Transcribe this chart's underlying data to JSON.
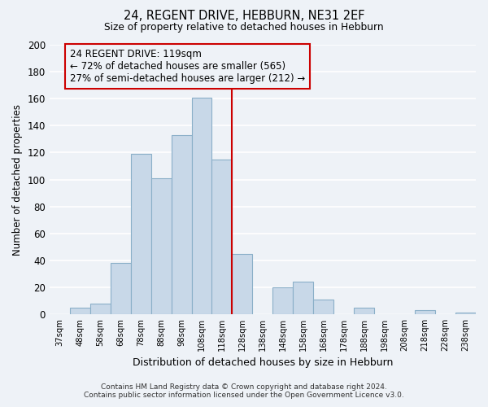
{
  "title": "24, REGENT DRIVE, HEBBURN, NE31 2EF",
  "subtitle": "Size of property relative to detached houses in Hebburn",
  "xlabel": "Distribution of detached houses by size in Hebburn",
  "ylabel": "Number of detached properties",
  "bin_labels": [
    "37sqm",
    "48sqm",
    "58sqm",
    "68sqm",
    "78sqm",
    "88sqm",
    "98sqm",
    "108sqm",
    "118sqm",
    "128sqm",
    "138sqm",
    "148sqm",
    "158sqm",
    "168sqm",
    "178sqm",
    "188sqm",
    "198sqm",
    "208sqm",
    "218sqm",
    "228sqm",
    "238sqm"
  ],
  "bar_heights": [
    0,
    5,
    8,
    38,
    119,
    101,
    133,
    161,
    115,
    45,
    0,
    20,
    24,
    11,
    0,
    5,
    0,
    0,
    3,
    0,
    1
  ],
  "bar_color": "#c8d8e8",
  "bar_edge_color": "#8aafc8",
  "vline_color": "#cc0000",
  "annotation_title": "24 REGENT DRIVE: 119sqm",
  "annotation_line1": "← 72% of detached houses are smaller (565)",
  "annotation_line2": "27% of semi-detached houses are larger (212) →",
  "annotation_box_edge": "#cc0000",
  "footnote1": "Contains HM Land Registry data © Crown copyright and database right 2024.",
  "footnote2": "Contains public sector information licensed under the Open Government Licence v3.0.",
  "ylim": [
    0,
    200
  ],
  "yticks": [
    0,
    20,
    40,
    60,
    80,
    100,
    120,
    140,
    160,
    180,
    200
  ],
  "background_color": "#eef2f7",
  "grid_color": "#ffffff"
}
